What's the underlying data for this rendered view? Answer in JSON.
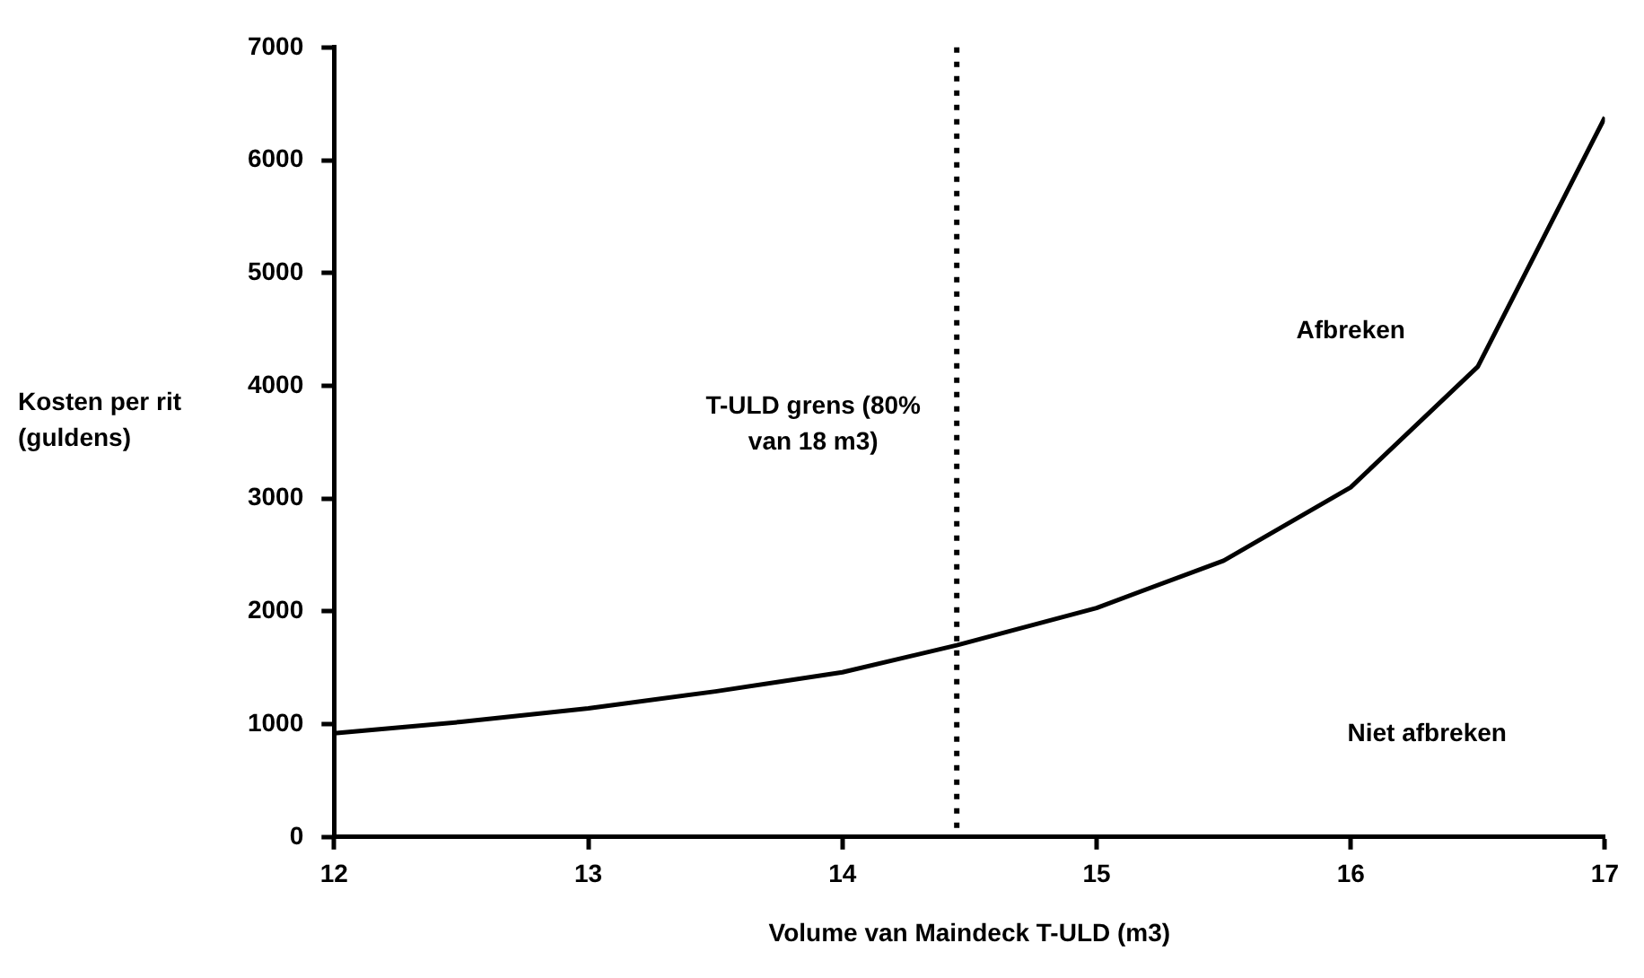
{
  "chart_data": {
    "type": "line",
    "xlabel": "Volume van Maindeck T-ULD (m3)",
    "ylabel": "Kosten per rit (guldens)",
    "x": [
      12,
      12.5,
      13,
      13.5,
      14,
      14.45,
      15,
      15.5,
      16,
      16.5,
      17
    ],
    "series": [
      {
        "color": "#000000",
        "values": [
          920,
          1020,
          1140,
          1290,
          1460,
          1700,
          2030,
          2450,
          3100,
          4170,
          6380
        ]
      }
    ],
    "xlim": [
      12,
      17
    ],
    "xticks": [
      12,
      13,
      14,
      15,
      16,
      17
    ],
    "ylim": [
      0,
      7000
    ],
    "yticks": [
      0,
      1000,
      2000,
      3000,
      4000,
      5000,
      6000,
      7000
    ],
    "ref_lines": [
      {
        "axis": "x",
        "value": 14.45,
        "label": "T-ULD grens (80% van 18 m3)",
        "color": "#000000",
        "line_style": "dotted"
      }
    ],
    "annotations": [
      "Afbreken",
      "Niet afbreken"
    ],
    "grid": false,
    "legend": false,
    "marker": "none",
    "line_style": "solid"
  }
}
